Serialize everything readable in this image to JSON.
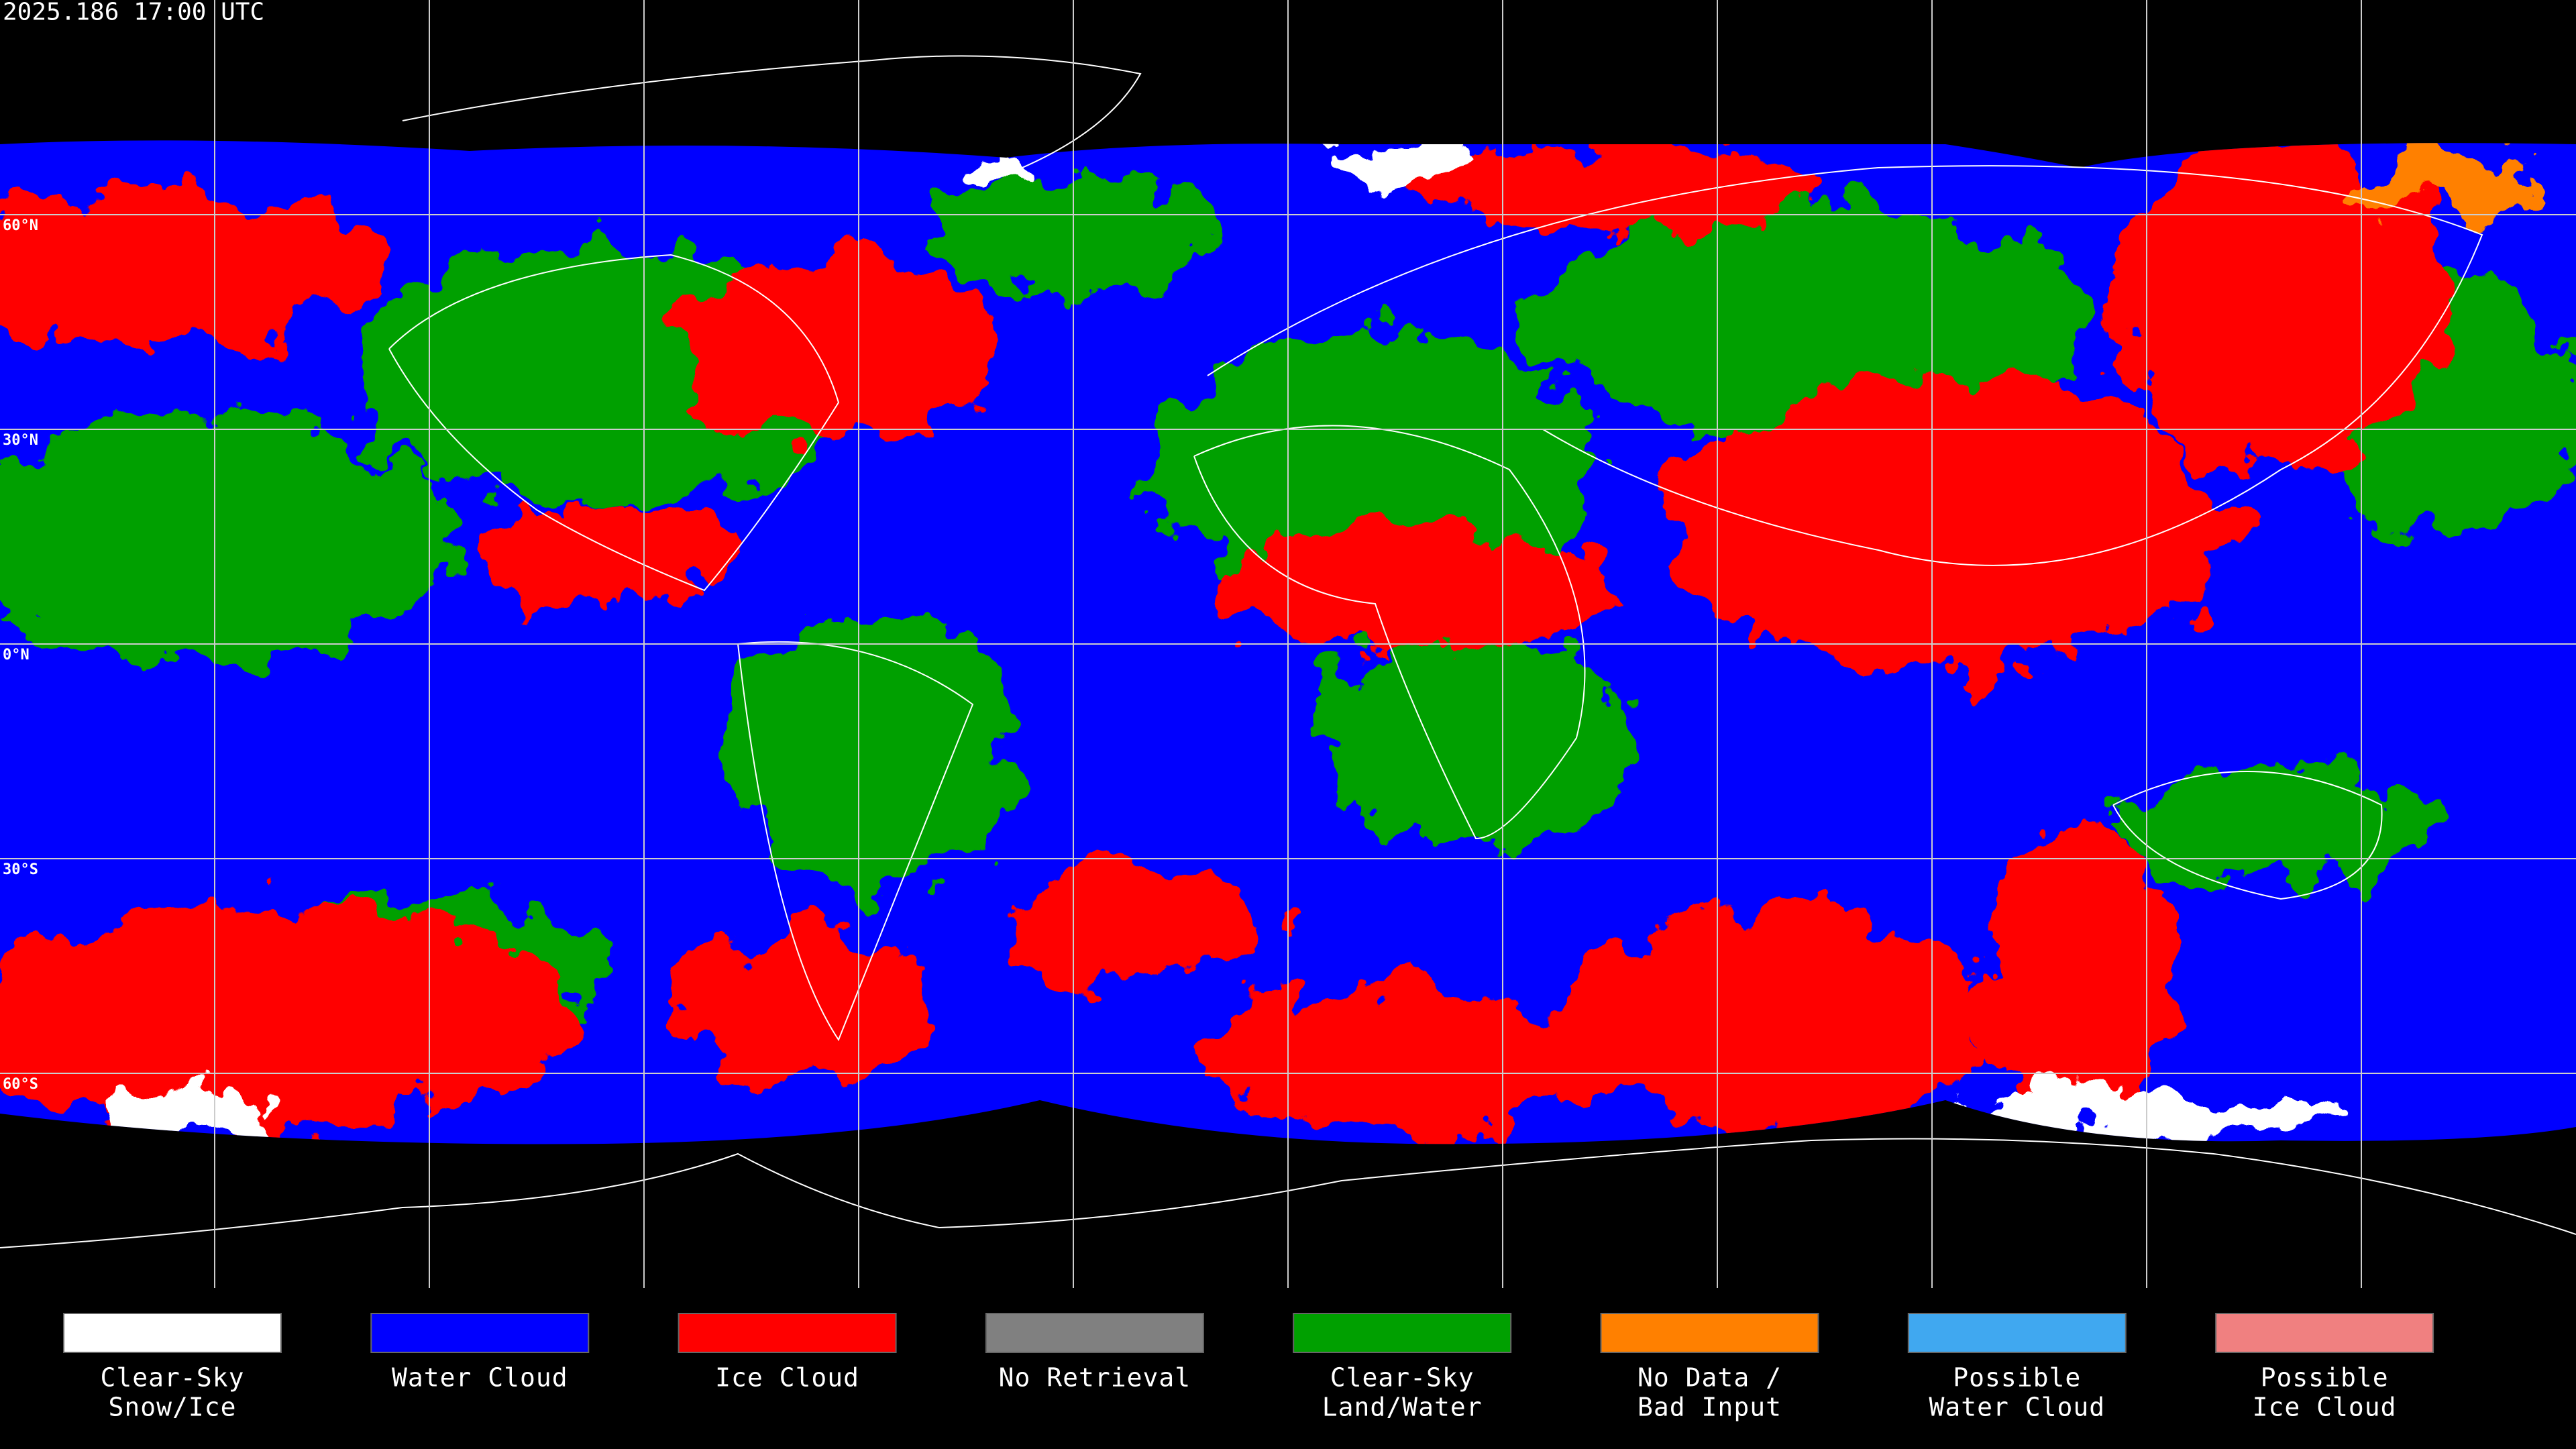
{
  "timestamp": "2025.186 17:00 UTC",
  "lat_labels": [
    "60°N",
    "30°N",
    "0°N",
    "30°S",
    "60°S"
  ],
  "legend": [
    {
      "lines": [
        "Clear-Sky",
        "Snow/Ice"
      ],
      "color": "#ffffff"
    },
    {
      "lines": [
        "Water Cloud"
      ],
      "color": "#0000ff"
    },
    {
      "lines": [
        "Ice Cloud"
      ],
      "color": "#ff0000"
    },
    {
      "lines": [
        "No Retrieval"
      ],
      "color": "#808080"
    },
    {
      "lines": [
        "Clear-Sky",
        "Land/Water"
      ],
      "color": "#00a000"
    },
    {
      "lines": [
        "No Data /",
        "Bad Input"
      ],
      "color": "#ff8000"
    },
    {
      "lines": [
        "Possible",
        "Water Cloud"
      ],
      "color": "#40a8f0"
    },
    {
      "lines": [
        "Possible",
        "Ice Cloud"
      ],
      "color": "#f08080"
    }
  ]
}
